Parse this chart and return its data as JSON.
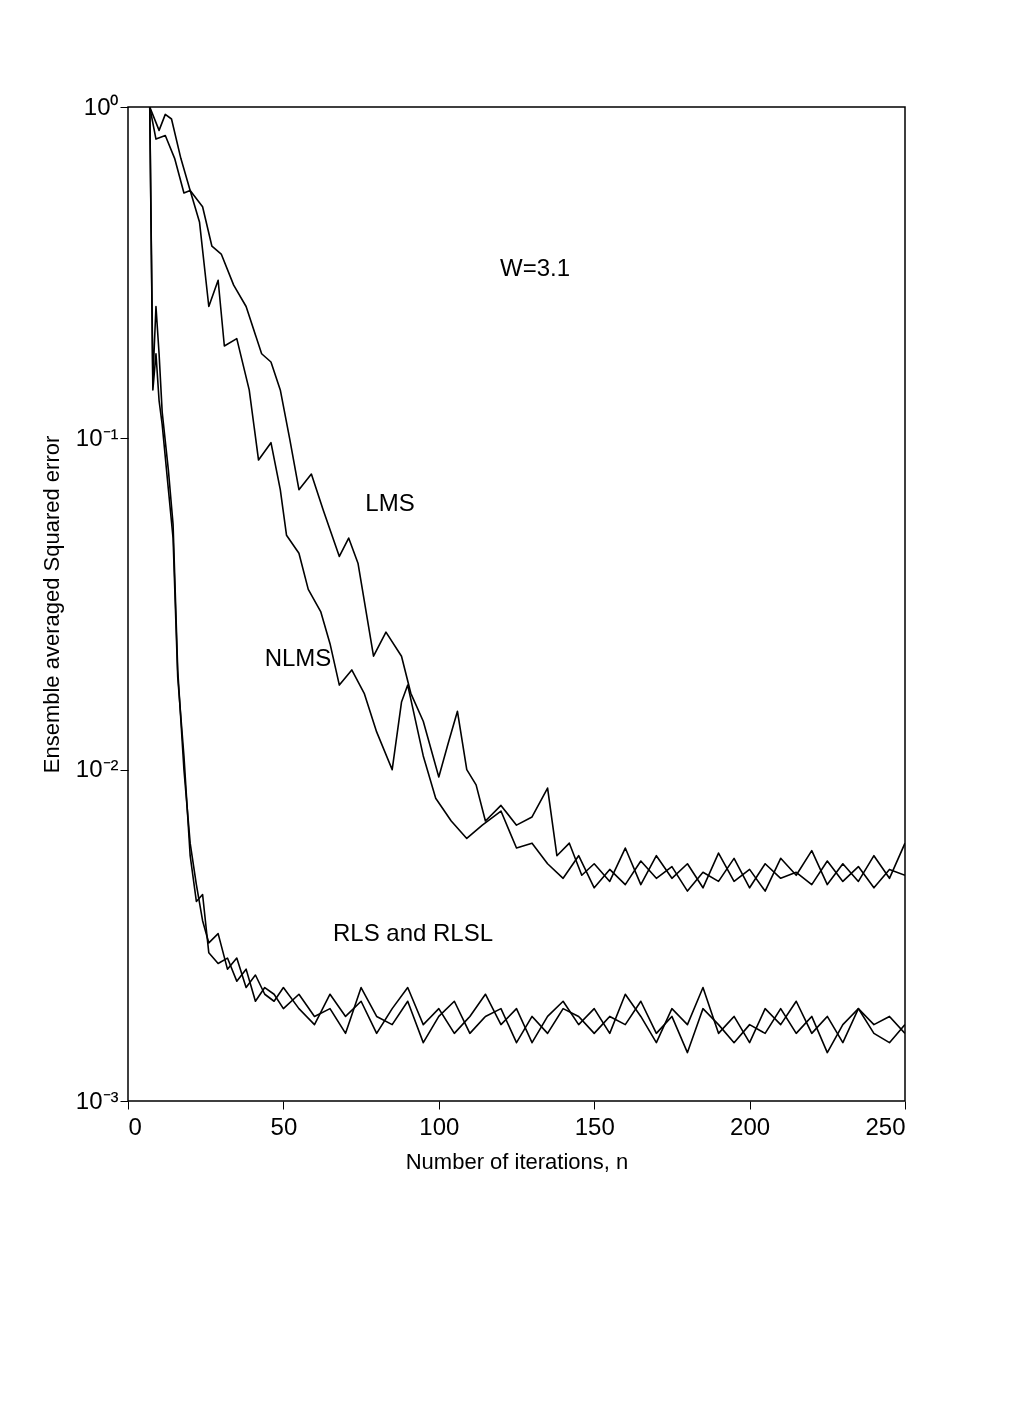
{
  "chart_data": {
    "type": "line",
    "xlabel": "Number of iterations, n",
    "ylabel": "Ensemble averaged Squared error",
    "log": "y",
    "grid": false,
    "marker": "none",
    "line_style": "solid",
    "xlim": [
      0,
      250
    ],
    "xticks": [
      0,
      50,
      100,
      150,
      200,
      250
    ],
    "ylim": [
      0.001,
      1
    ],
    "yticks": [
      {
        "value": 0.001,
        "label": "10⁻³"
      },
      {
        "value": 0.01,
        "label": "10⁻²"
      },
      {
        "value": 0.1,
        "label": "10⁻¹"
      },
      {
        "value": 1,
        "label": "10⁰"
      }
    ],
    "annotations": [
      "W=3.1",
      "LMS",
      "NLMS",
      "RLS and RLSL"
    ],
    "series": [
      {
        "color": "#000000",
        "x": [
          7,
          10,
          12,
          14,
          17,
          20,
          24,
          27,
          30,
          34,
          38,
          43,
          46,
          49,
          52,
          55,
          59,
          63,
          68,
          71,
          74,
          79,
          83,
          88,
          91,
          95,
          100,
          103,
          106,
          109,
          112,
          115,
          120,
          125,
          130,
          135,
          138,
          142,
          146,
          150,
          155,
          160,
          165,
          170,
          175,
          180,
          185,
          190,
          195,
          200,
          205,
          210,
          215,
          220,
          225,
          230,
          235,
          240,
          245,
          250
        ],
        "values": [
          1.0,
          0.85,
          0.95,
          0.92,
          0.7,
          0.56,
          0.5,
          0.38,
          0.36,
          0.29,
          0.25,
          0.18,
          0.17,
          0.14,
          0.1,
          0.07,
          0.078,
          0.06,
          0.044,
          0.05,
          0.042,
          0.022,
          0.026,
          0.022,
          0.017,
          0.014,
          0.0095,
          0.012,
          0.015,
          0.01,
          0.009,
          0.007,
          0.0078,
          0.0068,
          0.0072,
          0.0088,
          0.0055,
          0.006,
          0.0048,
          0.0052,
          0.0046,
          0.0058,
          0.0045,
          0.0055,
          0.0047,
          0.0052,
          0.0044,
          0.0056,
          0.0046,
          0.005,
          0.0043,
          0.0054,
          0.0048,
          0.0057,
          0.0045,
          0.0052,
          0.0046,
          0.0055,
          0.0047,
          0.006
        ]
      },
      {
        "color": "#000000",
        "x": [
          7,
          9,
          12,
          15,
          18,
          20,
          23,
          26,
          29,
          31,
          35,
          39,
          42,
          46,
          49,
          51,
          55,
          58,
          62,
          65,
          68,
          72,
          76,
          80,
          85,
          88,
          90,
          95,
          99,
          104,
          109,
          114,
          120,
          125,
          130,
          135,
          140,
          145,
          150,
          155,
          160,
          165,
          170,
          175,
          180,
          185,
          190,
          195,
          200,
          205,
          210,
          215,
          220,
          225,
          230,
          235,
          240,
          245,
          250
        ],
        "values": [
          1.0,
          0.8,
          0.82,
          0.7,
          0.55,
          0.56,
          0.45,
          0.25,
          0.3,
          0.19,
          0.2,
          0.14,
          0.086,
          0.097,
          0.07,
          0.051,
          0.045,
          0.035,
          0.03,
          0.024,
          0.018,
          0.02,
          0.017,
          0.013,
          0.01,
          0.016,
          0.018,
          0.011,
          0.0082,
          0.007,
          0.0062,
          0.0068,
          0.0075,
          0.0058,
          0.006,
          0.0052,
          0.0047,
          0.0055,
          0.0044,
          0.005,
          0.0045,
          0.0053,
          0.0047,
          0.0051,
          0.0043,
          0.0049,
          0.0046,
          0.0054,
          0.0044,
          0.0052,
          0.0047,
          0.0049,
          0.0045,
          0.0053,
          0.0046,
          0.0051,
          0.0044,
          0.005,
          0.0048
        ]
      },
      {
        "color": "#000000",
        "x": [
          7,
          8,
          9,
          10,
          11,
          13,
          14.5,
          16,
          18,
          20,
          22,
          24,
          26,
          29,
          32,
          35,
          38,
          41,
          44,
          47,
          50,
          55,
          60,
          65,
          70,
          75,
          80,
          85,
          90,
          95,
          100,
          105,
          110,
          115,
          120,
          125,
          130,
          135,
          140,
          145,
          150,
          155,
          160,
          165,
          170,
          175,
          180,
          185,
          190,
          195,
          200,
          205,
          210,
          215,
          220,
          225,
          230,
          235,
          240,
          245,
          250
        ],
        "values": [
          1.0,
          0.15,
          0.25,
          0.18,
          0.12,
          0.08,
          0.055,
          0.02,
          0.01,
          0.006,
          0.0045,
          0.0035,
          0.003,
          0.0032,
          0.0025,
          0.0027,
          0.0022,
          0.0024,
          0.0021,
          0.002,
          0.0022,
          0.0019,
          0.0017,
          0.0021,
          0.0018,
          0.002,
          0.0016,
          0.0019,
          0.0022,
          0.0017,
          0.0019,
          0.0016,
          0.0018,
          0.0021,
          0.0017,
          0.0019,
          0.0015,
          0.0018,
          0.002,
          0.0017,
          0.0019,
          0.0016,
          0.0021,
          0.0018,
          0.0015,
          0.0019,
          0.0017,
          0.0022,
          0.0016,
          0.0018,
          0.0015,
          0.0019,
          0.0017,
          0.002,
          0.0016,
          0.0018,
          0.0015,
          0.0019,
          0.0017,
          0.0018,
          0.0016
        ]
      },
      {
        "color": "#000000",
        "x": [
          7,
          8,
          9,
          10,
          11,
          13,
          14.5,
          16,
          18,
          20,
          22,
          24,
          26,
          29,
          32,
          35,
          38,
          41,
          44,
          47,
          50,
          55,
          60,
          65,
          70,
          75,
          80,
          85,
          90,
          95,
          100,
          105,
          110,
          115,
          120,
          125,
          130,
          135,
          140,
          145,
          150,
          155,
          160,
          165,
          170,
          175,
          180,
          185,
          190,
          195,
          200,
          205,
          210,
          215,
          220,
          225,
          230,
          235,
          240,
          245,
          250
        ],
        "values": [
          1.0,
          0.14,
          0.18,
          0.13,
          0.11,
          0.07,
          0.05,
          0.019,
          0.011,
          0.0055,
          0.004,
          0.0042,
          0.0028,
          0.0026,
          0.0027,
          0.0023,
          0.0025,
          0.002,
          0.0022,
          0.0021,
          0.0019,
          0.0021,
          0.0018,
          0.0019,
          0.0016,
          0.0022,
          0.0018,
          0.0017,
          0.002,
          0.0015,
          0.0018,
          0.002,
          0.0016,
          0.0018,
          0.0019,
          0.0015,
          0.0018,
          0.0016,
          0.0019,
          0.0018,
          0.0016,
          0.0018,
          0.0017,
          0.002,
          0.0016,
          0.0018,
          0.0014,
          0.0019,
          0.0017,
          0.0015,
          0.0017,
          0.0016,
          0.0019,
          0.0016,
          0.0018,
          0.0014,
          0.0017,
          0.0019,
          0.0016,
          0.0015,
          0.0017
        ]
      }
    ]
  }
}
